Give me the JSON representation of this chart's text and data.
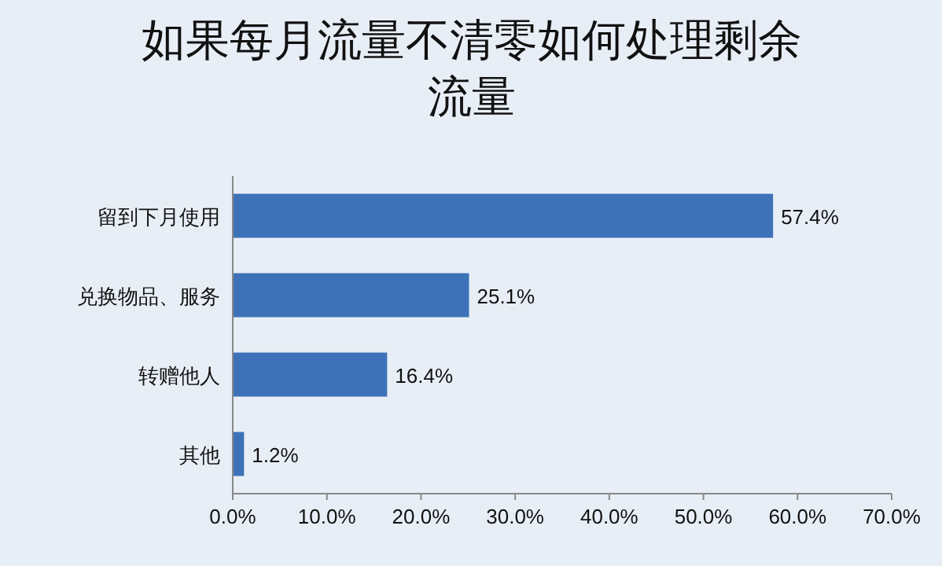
{
  "chart_data": {
    "type": "bar",
    "orientation": "horizontal",
    "title": "如果每月流量不清零如何处理剩余流量",
    "categories": [
      "留到下月使用",
      "兑换物品、服务",
      "转赠他人",
      "其他"
    ],
    "values": [
      57.4,
      25.1,
      16.4,
      1.2
    ],
    "value_labels": [
      "57.4%",
      "25.1%",
      "16.4%",
      "1.2%"
    ],
    "color": "#3d72b8",
    "xlim": [
      0,
      70
    ],
    "xticks": [
      {
        "value": 0,
        "label": "0.0%"
      },
      {
        "value": 10,
        "label": "10.0%"
      },
      {
        "value": 20,
        "label": "20.0%"
      },
      {
        "value": 30,
        "label": "30.0%"
      },
      {
        "value": 40,
        "label": "40.0%"
      },
      {
        "value": 50,
        "label": "50.0%"
      },
      {
        "value": 60,
        "label": "60.0%"
      },
      {
        "value": 70,
        "label": "70.0%"
      }
    ]
  }
}
